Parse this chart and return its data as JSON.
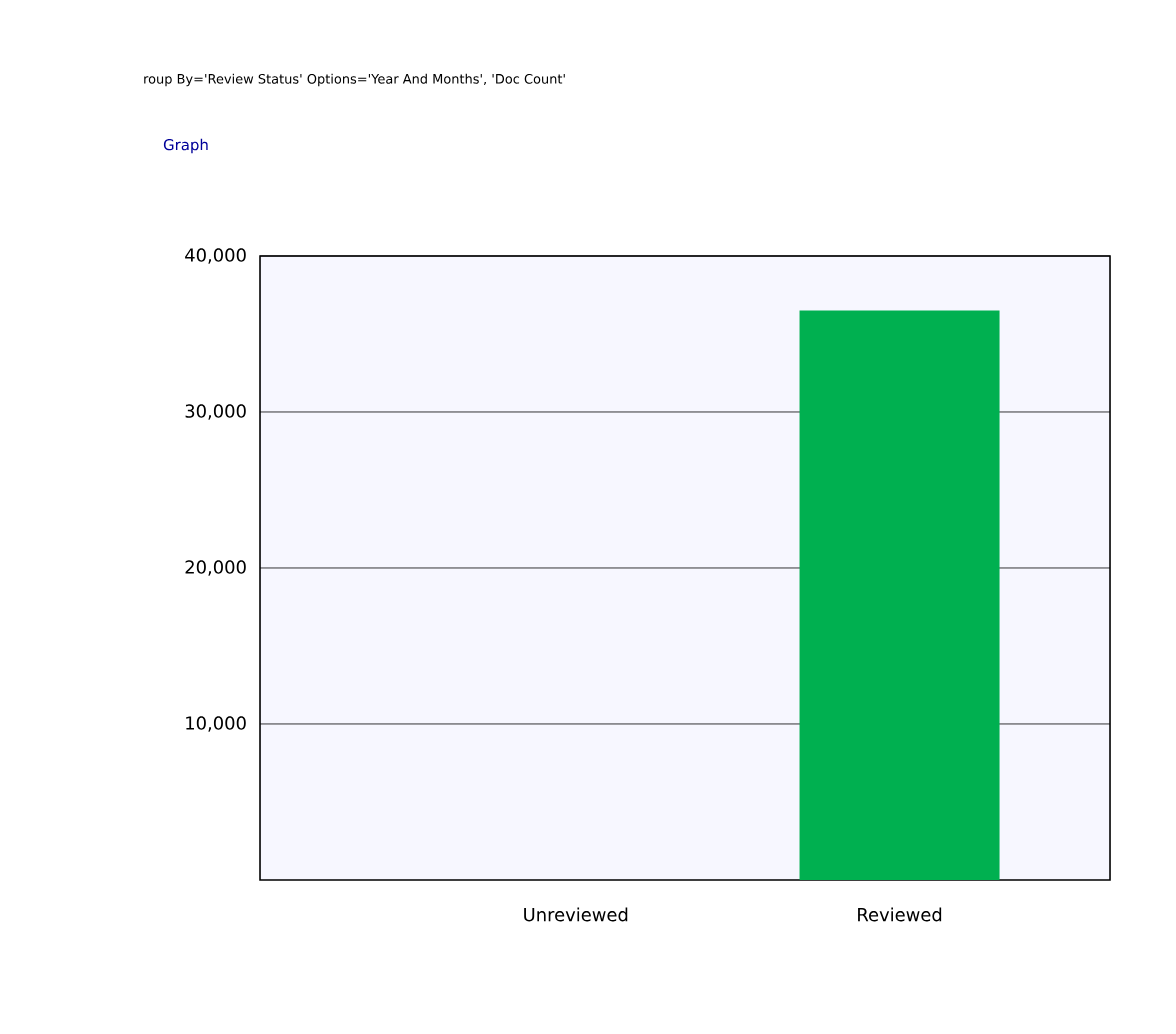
{
  "chart_data": {
    "type": "bar",
    "categories": [
      "Unreviewed",
      "Reviewed"
    ],
    "values": [
      0,
      36500
    ],
    "color": "#00b050",
    "ylim": [
      0,
      40000
    ],
    "yticks": [
      {
        "value": 10000,
        "label": "10,000"
      },
      {
        "value": 20000,
        "label": "20,000"
      },
      {
        "value": 30000,
        "label": "30,000"
      },
      {
        "value": 40000,
        "label": "40,000"
      }
    ],
    "grid": "y",
    "annotations": [
      "roup By='Review Status' Options='Year And Months', 'Doc Count'",
      "Graph"
    ]
  }
}
